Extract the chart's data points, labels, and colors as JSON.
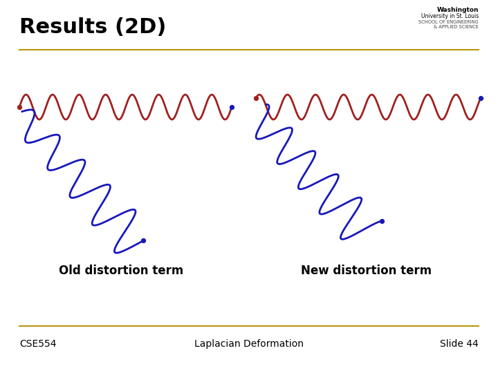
{
  "title": "Results (2D)",
  "footer_left": "CSE554",
  "footer_center": "Laplacian Deformation",
  "footer_right": "Slide 44",
  "label_left": "Old distortion term",
  "label_right": "New distortion term",
  "bg_color": "#ffffff",
  "red_color": "#a02020",
  "blue_color": "#1818bb",
  "gold_color": "#b8960c",
  "title_fontsize": 22,
  "label_fontsize": 12,
  "footer_fontsize": 10
}
